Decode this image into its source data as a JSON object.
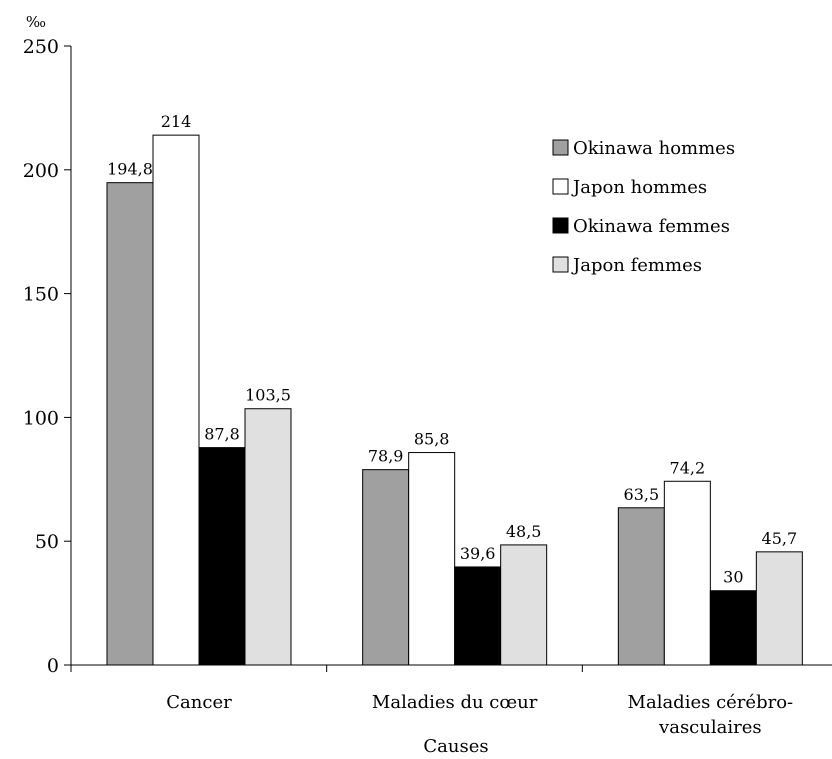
{
  "chart_data": {
    "type": "bar",
    "unit_label": "‰",
    "xlabel": "Causes",
    "categories": [
      [
        "Cancer"
      ],
      [
        "Maladies du cœur"
      ],
      [
        "Maladies cérébro-",
        "vasculaires"
      ]
    ],
    "series": [
      {
        "name": "Okinawa hommes",
        "color": "#a0a0a0",
        "values": [
          194.8,
          78.9,
          63.5
        ],
        "labels": [
          "194,8",
          "78,9",
          "63,5"
        ]
      },
      {
        "name": "Japon hommes",
        "color": "#ffffff",
        "values": [
          214,
          85.8,
          74.2
        ],
        "labels": [
          "214",
          "85,8",
          "74,2"
        ]
      },
      {
        "name": "Okinawa femmes",
        "color": "#000000",
        "values": [
          87.8,
          39.6,
          30
        ],
        "labels": [
          "87,8",
          "39,6",
          "30"
        ]
      },
      {
        "name": "Japon femmes",
        "color": "#e0e0e0",
        "values": [
          103.5,
          48.5,
          45.7
        ],
        "labels": [
          "103,5",
          "48,5",
          "45,7"
        ]
      }
    ],
    "yticks": [
      0,
      50,
      100,
      150,
      200,
      250
    ],
    "ylim": [
      0,
      250
    ],
    "legend_position": "top-right",
    "grid": false
  }
}
